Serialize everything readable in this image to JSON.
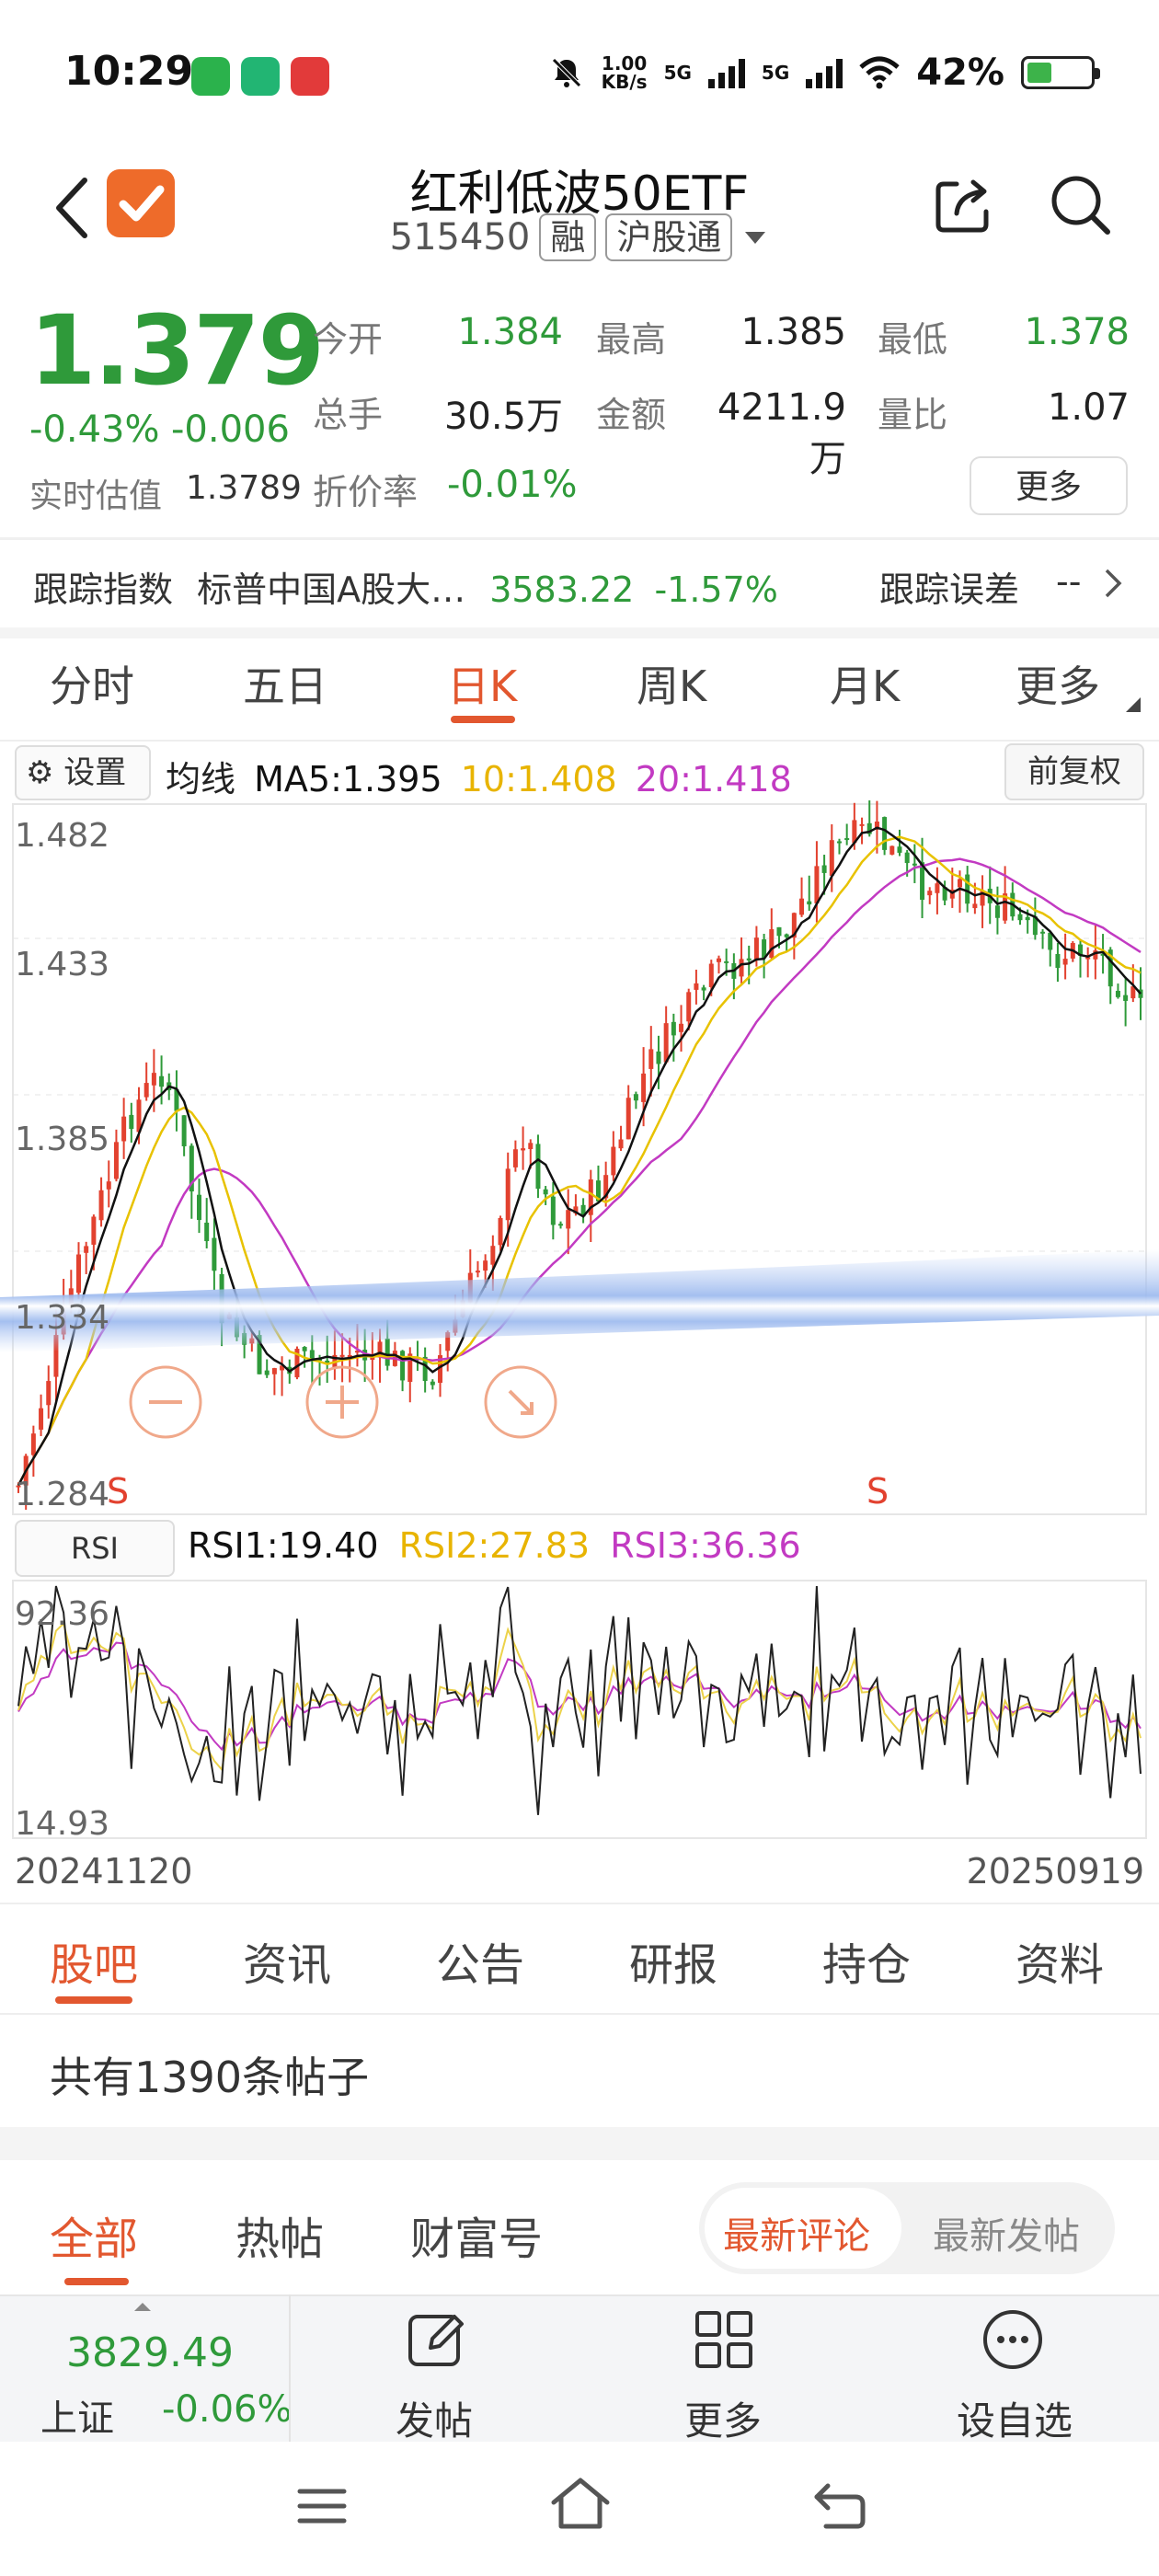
{
  "status_bar": {
    "time": "10:29",
    "speed": "1.00\nKB/s",
    "net1": "5G",
    "net2": "5G",
    "battery": "42%"
  },
  "header": {
    "title": "红利低波50ETF",
    "code": "515450",
    "tag_margin": "融",
    "tag_connect": "沪股通"
  },
  "quote": {
    "price": "1.379",
    "change_pct": "-0.43%",
    "change_abs": "-0.006",
    "est_label": "实时估值",
    "est_value": "1.3789",
    "fields": [
      {
        "label": "今开",
        "value": "1.384",
        "color": "green"
      },
      {
        "label": "最高",
        "value": "1.385",
        "color": "dark"
      },
      {
        "label": "最低",
        "value": "1.378",
        "color": "green"
      },
      {
        "label": "总手",
        "value": "30.5万",
        "color": "dark"
      },
      {
        "label": "金额",
        "value": "4211.9万",
        "color": "dark"
      },
      {
        "label": "量比",
        "value": "1.07",
        "color": "dark"
      },
      {
        "label": "折价率",
        "value": "-0.01%",
        "color": "green"
      }
    ],
    "more_button": "更多"
  },
  "tracking": {
    "label": "跟踪指数",
    "index_name": "标普中国A股大…",
    "index_value": "3583.22",
    "index_change": "-1.57%",
    "error_label": "跟踪误差",
    "error_value": "--"
  },
  "chart_tabs": [
    "分时",
    "五日",
    "日K",
    "周K",
    "月K",
    "更多"
  ],
  "chart_tab_active": "日K",
  "chart_controls": {
    "settings": "设置",
    "ma_label": "均线",
    "ma5": "MA5:1.395",
    "ma10": "10:1.408",
    "ma20": "20:1.418",
    "adjust": "前复权",
    "ma5_color": "#111111",
    "ma10_color": "#e8b400",
    "ma20_color": "#c23ac2"
  },
  "chart_data": [
    {
      "type": "candlestick",
      "y_ticks": [
        "1.482",
        "1.433",
        "1.385",
        "1.334",
        "1.284"
      ],
      "ylim": [
        1.284,
        1.482
      ],
      "markers": [
        "S",
        "S"
      ],
      "up_color": "#e2412f",
      "down_color": "#2f9a3a"
    },
    {
      "type": "line",
      "indicator": "RSI",
      "y_ticks": [
        "92.36",
        "14.93"
      ],
      "ylim": [
        14.93,
        92.36
      ],
      "x_start": "20241120",
      "x_end": "20250919"
    }
  ],
  "rsi": {
    "button": "RSI",
    "rsi1": "RSI1:19.40",
    "rsi2": "RSI2:27.83",
    "rsi3": "RSI3:36.36"
  },
  "section_tabs": [
    "股吧",
    "资讯",
    "公告",
    "研报",
    "持仓",
    "资料"
  ],
  "section_tab_active": "股吧",
  "forum": {
    "posts_count": "共有1390条帖子",
    "filter_tabs": [
      "全部",
      "热帖",
      "财富号"
    ],
    "sort_latest_comment": "最新评论",
    "sort_latest_post": "最新发帖"
  },
  "bottom_bar": {
    "index_value": "3829.49",
    "index_name": "上证",
    "index_change": "-0.06%",
    "post": "发帖",
    "more": "更多",
    "add_watch": "设自选"
  }
}
